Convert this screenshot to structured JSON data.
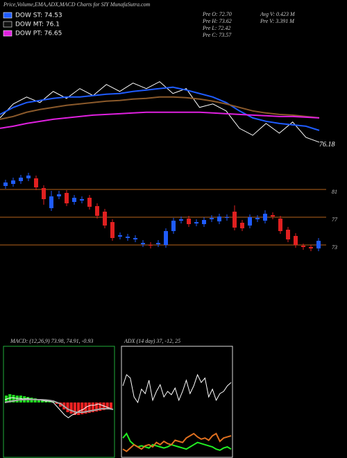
{
  "header": {
    "title": "Price,Volume,EMA,ADX,MACD Charts for SIY MunafaSutra.com",
    "legend": [
      {
        "label": "DOW ST: 74.53",
        "color": "#1f5cff"
      },
      {
        "label": "DOW MT: 76.1",
        "color": "#111111"
      },
      {
        "label": "DOW PT: 76.65",
        "color": "#e020e0"
      }
    ],
    "stats": [
      "Pre  O: 72.70",
      "Pre  H: 73.62",
      "Pre  L: 72.42",
      "Pre  C: 73.57",
      "Avg V: 0.423 M",
      "Pre  V: 3.391 M"
    ]
  },
  "chart_data": [
    {
      "type": "line",
      "ylim": [
        75,
        92
      ],
      "series": [
        {
          "color": "#ffffff",
          "values": [
            80.29,
            82.65,
            83.82,
            82.88,
            84.76,
            83.59,
            85.24,
            84.06,
            85.94,
            84.76,
            86.18,
            85.24,
            86.41,
            84.41,
            85.24,
            82.06,
            82.65,
            81.47,
            78.53,
            77.35,
            79.35,
            77.71,
            79.59,
            77.0,
            76.18
          ]
        },
        {
          "color": "#1f5cff",
          "values": [
            80.88,
            82.06,
            82.88,
            83.24,
            83.59,
            83.82,
            83.82,
            84.06,
            84.29,
            84.41,
            84.76,
            85.0,
            85.24,
            85.47,
            85.0,
            84.41,
            83.82,
            82.88,
            81.47,
            80.29,
            79.71,
            79.35,
            79.12,
            78.88,
            78.18
          ]
        },
        {
          "color": "#8b5a2b",
          "values": [
            80.06,
            80.53,
            81.24,
            81.71,
            82.06,
            82.41,
            82.65,
            82.88,
            83.12,
            83.24,
            83.47,
            83.59,
            83.82,
            83.82,
            83.71,
            83.47,
            83.12,
            82.65,
            82.06,
            81.47,
            81.12,
            80.88,
            80.76,
            80.53,
            80.29
          ]
        },
        {
          "color": "#e020e0",
          "values": [
            78.53,
            78.88,
            79.35,
            79.71,
            80.06,
            80.29,
            80.53,
            80.76,
            80.88,
            81.0,
            81.12,
            81.24,
            81.24,
            81.24,
            81.24,
            81.24,
            81.12,
            81.0,
            80.88,
            80.76,
            80.65,
            80.53,
            80.53,
            80.41,
            80.29
          ]
        }
      ]
    },
    {
      "type": "candlestick",
      "ylim": [
        68.5,
        85.5
      ],
      "yticks": [
        81,
        77,
        73
      ],
      "grid": true,
      "grid_color": "#b8651b",
      "up_color": "#1f5cff",
      "down_color": "#e02020",
      "open": [
        81.5,
        81.8,
        82.2,
        82.6,
        82.6,
        81.2,
        78.3,
        80.0,
        80.5,
        79.2,
        79.4,
        79.8,
        78.6,
        77.8,
        76.3,
        74.2,
        74.0,
        73.8,
        73.1,
        73.0,
        73.1,
        73.0,
        75.0,
        76.5,
        76.8,
        76.1,
        76.0,
        76.7,
        76.4,
        76.9,
        77.8,
        76.2,
        75.8,
        76.7,
        76.5,
        77.3,
        76.8,
        75.2,
        74.3,
        72.9,
        72.7,
        72.5
      ],
      "high": [
        82.4,
        82.7,
        83.1,
        83.4,
        83.0,
        81.6,
        80.8,
        80.8,
        80.9,
        80.2,
        80.0,
        80.2,
        79.0,
        78.2,
        76.7,
        74.8,
        74.6,
        74.4,
        73.7,
        73.4,
        73.7,
        75.4,
        76.9,
        77.1,
        77.2,
        76.7,
        77.0,
        77.3,
        77.5,
        77.4,
        78.7,
        76.6,
        77.4,
        77.3,
        78.0,
        77.7,
        77.2,
        75.6,
        74.7,
        73.2,
        73.0,
        74.0
      ],
      "low": [
        81.1,
        81.4,
        81.8,
        82.2,
        80.9,
        78.8,
        77.9,
        79.6,
        78.6,
        78.8,
        79.0,
        78.1,
        76.8,
        75.4,
        73.6,
        73.8,
        73.6,
        73.4,
        72.7,
        72.5,
        72.7,
        72.6,
        74.6,
        76.1,
        75.6,
        75.7,
        75.6,
        76.3,
        76.0,
        76.5,
        75.1,
        75.0,
        75.4,
        76.3,
        76.1,
        76.7,
        74.6,
        73.4,
        72.6,
        72.3,
        72.1,
        72.1
      ],
      "close": [
        82.0,
        82.3,
        82.7,
        83.0,
        81.3,
        79.6,
        80.0,
        80.3,
        79.0,
        79.8,
        79.6,
        78.5,
        77.2,
        75.8,
        74.0,
        74.4,
        74.2,
        74.0,
        73.3,
        72.9,
        73.3,
        75.0,
        76.5,
        76.7,
        76.0,
        76.3,
        76.6,
        76.9,
        77.1,
        77.0,
        75.5,
        75.4,
        77.0,
        76.9,
        77.5,
        77.1,
        75.0,
        73.8,
        73.0,
        72.7,
        72.5,
        73.6
      ]
    },
    {
      "type": "macd",
      "title": "MACD: (12,26,9) 73.98, 74.91, -0.93",
      "ylim": [
        -4,
        4
      ],
      "up_color": "#22dd22",
      "down_color": "#ee2222",
      "histogram": [
        0.5,
        0.6,
        0.55,
        0.5,
        0.5,
        0.45,
        0.4,
        0.35,
        0.3,
        0.25,
        0.2,
        0.15,
        0.1,
        0.05,
        -0.1,
        -0.3,
        -0.5,
        -0.7,
        -0.8,
        -0.9,
        -0.9,
        -0.85,
        -0.8,
        -0.75,
        -0.7,
        -0.65,
        -0.6,
        -0.55,
        -0.5,
        -0.45
      ],
      "series": [
        {
          "color": "#ffffff",
          "values": [
            0.2,
            0.3,
            0.35,
            0.3,
            0.3,
            0.25,
            0.3,
            0.25,
            0.2,
            0.2,
            0.15,
            0.1,
            0.1,
            0.0,
            -0.3,
            -0.6,
            -0.9,
            -1.1,
            -0.9,
            -0.8,
            -0.6,
            -0.5,
            -0.3,
            -0.2,
            -0.2,
            -0.1,
            -0.2,
            -0.3,
            -0.4,
            -0.5
          ]
        },
        {
          "color": "#aaaaaa",
          "values": [
            0.0,
            0.05,
            0.1,
            0.15,
            0.2,
            0.2,
            0.22,
            0.22,
            0.22,
            0.2,
            0.2,
            0.18,
            0.15,
            0.1,
            0.0,
            -0.1,
            -0.3,
            -0.5,
            -0.6,
            -0.7,
            -0.7,
            -0.7,
            -0.65,
            -0.6,
            -0.55,
            -0.5,
            -0.45,
            -0.45,
            -0.45,
            -0.5
          ]
        }
      ]
    },
    {
      "type": "line",
      "title": "ADX  (14  day) 37,  -12,  25",
      "ylim": [
        0,
        100
      ],
      "series": [
        {
          "color": "#ffffff",
          "values": [
            65,
            75,
            72,
            55,
            50,
            62,
            58,
            70,
            52,
            60,
            66,
            55,
            60,
            57,
            63,
            52,
            60,
            70,
            58,
            65,
            75,
            68,
            72,
            55,
            62,
            52,
            58,
            60,
            65,
            68
          ]
        },
        {
          "color": "#22ee22",
          "values": [
            18,
            22,
            15,
            12,
            10,
            11,
            10,
            9,
            12,
            11,
            10,
            9,
            10,
            12,
            11,
            10,
            9,
            8,
            10,
            12,
            14,
            13,
            12,
            11,
            10,
            8,
            7,
            9,
            10,
            8
          ]
        },
        {
          "color": "#e07020",
          "values": [
            8,
            6,
            9,
            12,
            10,
            8,
            11,
            12,
            10,
            14,
            12,
            15,
            13,
            12,
            16,
            15,
            14,
            18,
            20,
            22,
            19,
            17,
            18,
            16,
            20,
            22,
            15,
            18,
            19,
            20
          ]
        }
      ]
    }
  ]
}
